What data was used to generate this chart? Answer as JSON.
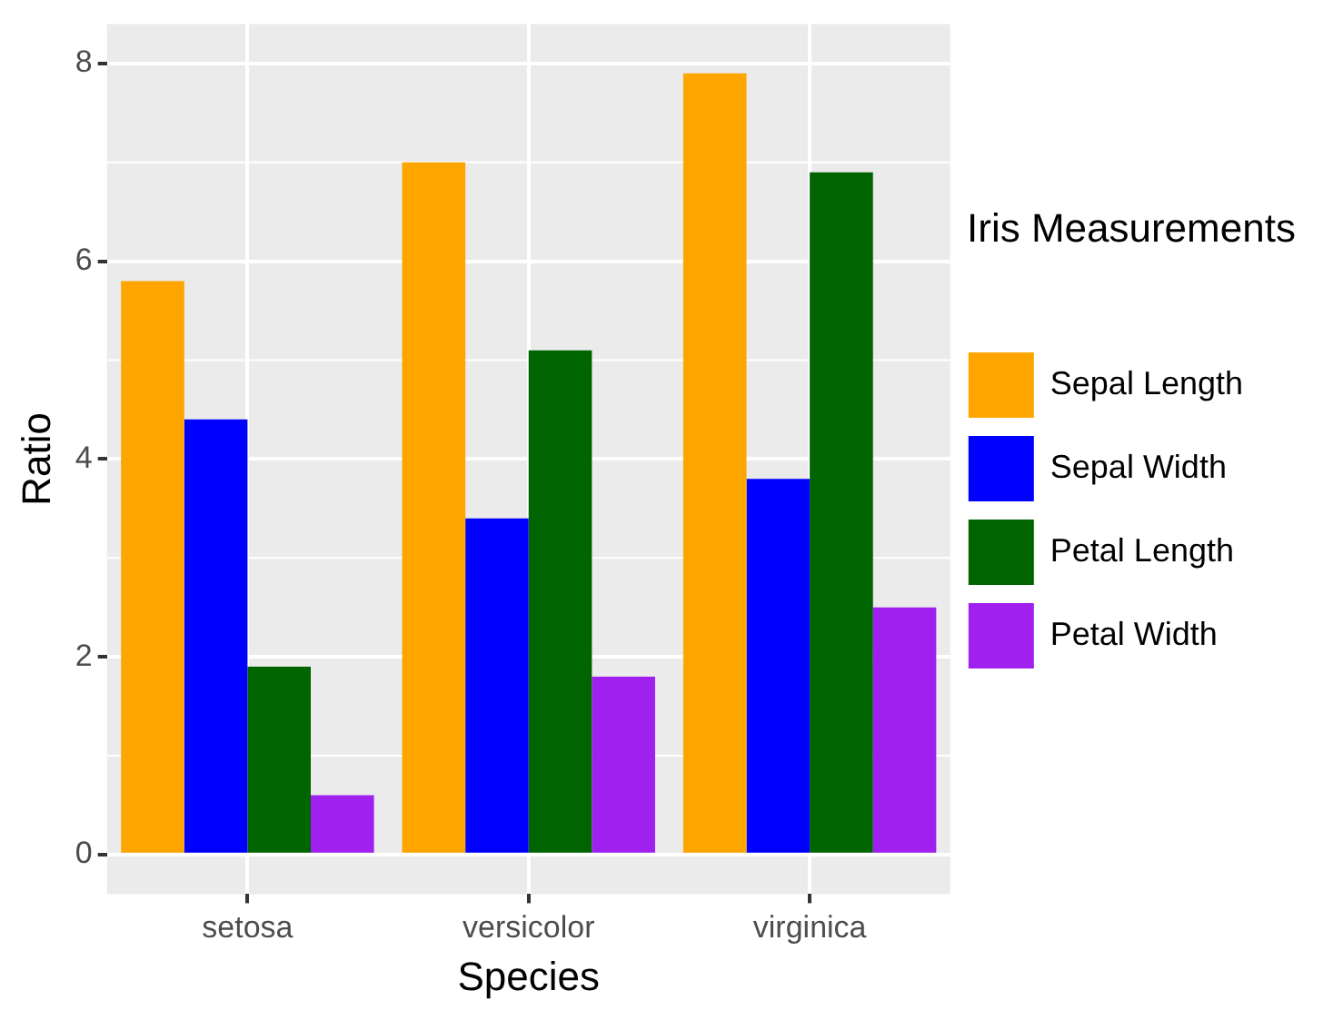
{
  "chart_data": {
    "type": "bar",
    "xlabel": "Species",
    "ylabel": "Ratio",
    "legend_title": "Iris Measurements",
    "categories": [
      "setosa",
      "versicolor",
      "virginica"
    ],
    "series": [
      {
        "name": "Sepal Length",
        "color": "#ffa500",
        "values": [
          5.8,
          7.0,
          7.9
        ]
      },
      {
        "name": "Sepal Width",
        "color": "#0000ff",
        "values": [
          4.4,
          3.4,
          3.8
        ]
      },
      {
        "name": "Petal Length",
        "color": "#006400",
        "values": [
          1.9,
          5.1,
          6.9
        ]
      },
      {
        "name": "Petal Width",
        "color": "#a020f0",
        "values": [
          0.6,
          1.8,
          2.5
        ]
      }
    ],
    "ylim": [
      -0.4,
      8.4
    ],
    "yticks": [
      0,
      2,
      4,
      6,
      8
    ],
    "grid": true,
    "legend": "right"
  }
}
